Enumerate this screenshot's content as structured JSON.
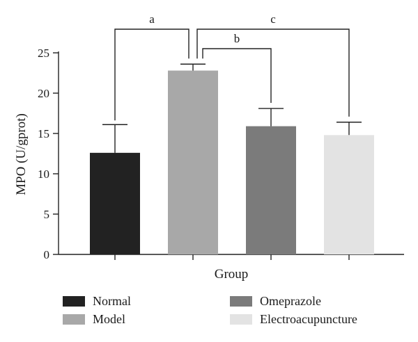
{
  "chart_data": {
    "type": "bar",
    "categories": [
      "Normal",
      "Model",
      "Omeprazole",
      "Electroacupuncture"
    ],
    "values": [
      12.6,
      22.8,
      15.9,
      14.8
    ],
    "error_upper": [
      16.1,
      23.6,
      18.1,
      16.4
    ],
    "colors": [
      "#222222",
      "#a8a8a8",
      "#7b7b7b",
      "#e3e3e3"
    ],
    "xlabel": "Group",
    "ylabel": "MPO (U/gprot)",
    "ylim": [
      0,
      25
    ],
    "yticks": [
      0,
      5,
      10,
      15,
      20,
      25
    ],
    "grid": false,
    "legend_position": "bottom",
    "significance": [
      {
        "label": "a",
        "from": "Normal",
        "to": "Model"
      },
      {
        "label": "b",
        "from": "Model",
        "to": "Omeprazole"
      },
      {
        "label": "c",
        "from": "Model",
        "to": "Electroacupuncture"
      }
    ]
  }
}
